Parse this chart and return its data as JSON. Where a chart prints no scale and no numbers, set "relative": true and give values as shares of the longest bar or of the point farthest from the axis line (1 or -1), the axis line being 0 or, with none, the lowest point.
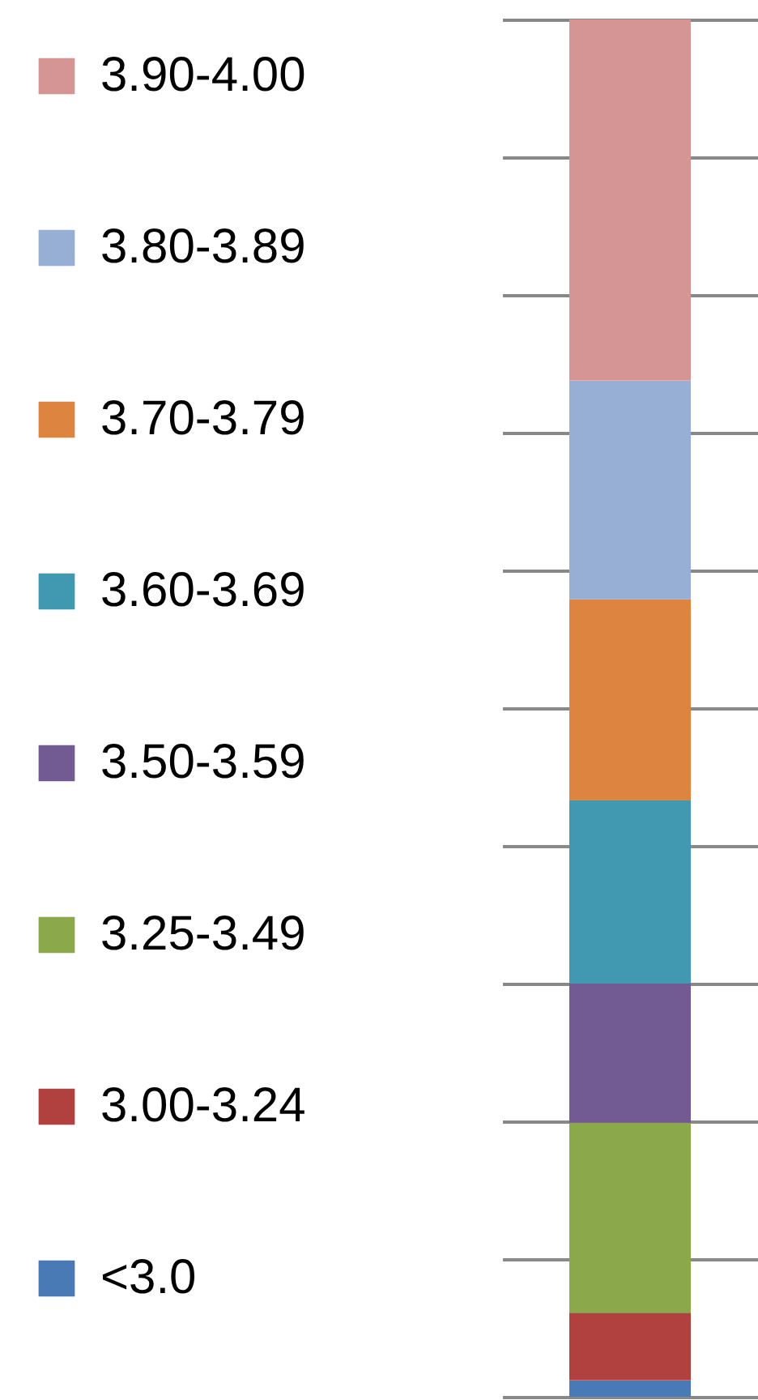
{
  "chart_data": {
    "type": "bar",
    "stacked": true,
    "relative": true,
    "categories": [
      null
    ],
    "grid": "y",
    "legend": "left",
    "series": [
      {
        "name": "<3.0",
        "color": "#4a7ab5",
        "values": [
          0.012
        ]
      },
      {
        "name": "3.00-3.24",
        "color": "#b0413e",
        "values": [
          0.049
        ]
      },
      {
        "name": "3.25-3.49",
        "color": "#8ba84a",
        "values": [
          0.138
        ]
      },
      {
        "name": "3.50-3.59",
        "color": "#725a92",
        "values": [
          0.101
        ]
      },
      {
        "name": "3.60-3.69",
        "color": "#4099b0",
        "values": [
          0.133
        ]
      },
      {
        "name": "3.70-3.79",
        "color": "#dd8540",
        "values": [
          0.146
        ]
      },
      {
        "name": "3.80-3.89",
        "color": "#97aed5",
        "values": [
          0.159
        ]
      },
      {
        "name": "3.90-4.00",
        "color": "#d59595",
        "values": [
          0.262
        ]
      }
    ]
  }
}
